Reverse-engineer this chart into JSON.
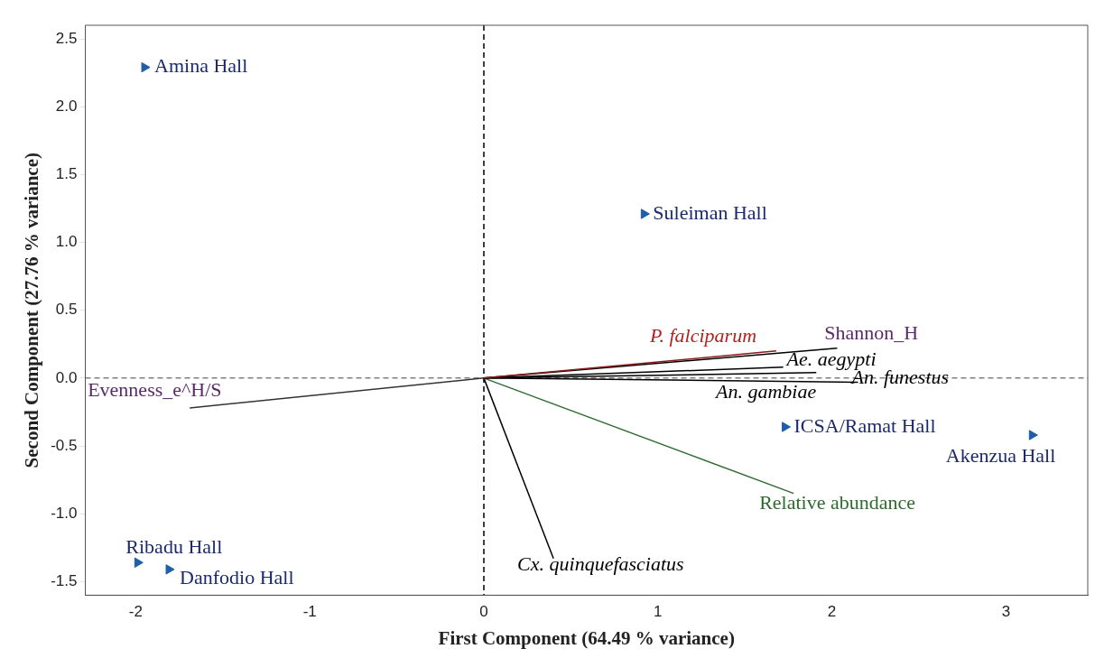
{
  "chart_data": {
    "type": "scatter",
    "xlabel": "First Component (64.49 % variance)",
    "ylabel": "Second Component (27.76 % variance)",
    "xlim": [
      -2.29,
      3.47
    ],
    "ylim": [
      -1.6,
      2.6
    ],
    "xticks": [
      -2,
      -1,
      0,
      1,
      2,
      3
    ],
    "yticks": [
      {
        "value": -1.5,
        "label": "-1.5"
      },
      {
        "value": -1,
        "label": "-1.0"
      },
      {
        "value": -0.5,
        "label": "-0.5"
      },
      {
        "value": 0,
        "label": "0.0"
      },
      {
        "value": 0.5,
        "label": "0.5"
      },
      {
        "value": 1,
        "label": "1.0"
      },
      {
        "value": 1.5,
        "label": "1.5"
      },
      {
        "value": 2,
        "label": "2.0"
      },
      {
        "value": 2.5,
        "label": "2.5"
      }
    ],
    "grid": false,
    "legend": false,
    "ref_lines": [
      {
        "axis": "x",
        "value": 0,
        "color": "#000000",
        "line_style": "dashed"
      },
      {
        "axis": "y",
        "value": 0,
        "color": "#808080",
        "line_style": "dashed"
      }
    ],
    "series": [
      {
        "name": "Amina Hall",
        "marker": "triangle",
        "color": "#1f5fa8",
        "x": [
          -1.95
        ],
        "values": [
          2.29
        ]
      },
      {
        "name": "Suleiman Hall",
        "marker": "triangle",
        "color": "#1f5fa8",
        "x": [
          0.92
        ],
        "values": [
          1.21
        ]
      },
      {
        "name": "ICSA/Ramat Hall",
        "marker": "triangle",
        "color": "#1f5fa8",
        "x": [
          1.73
        ],
        "values": [
          -0.36
        ]
      },
      {
        "name": "Akenzua Hall",
        "marker": "triangle",
        "color": "#1f5fa8",
        "x": [
          3.15
        ],
        "values": [
          -0.42
        ]
      },
      {
        "name": "Ribadu Hall",
        "marker": "triangle",
        "color": "#1f5fa8",
        "x": [
          -1.99
        ],
        "values": [
          -1.36
        ]
      },
      {
        "name": "Danfodio Hall",
        "marker": "triangle",
        "color": "#1f5fa8",
        "x": [
          -1.81
        ],
        "values": [
          -1.41
        ]
      },
      {
        "name": "P. falciparum",
        "type": "line",
        "color": "#8b1a1a",
        "x": [
          0,
          1.68
        ],
        "values": [
          0,
          0.2
        ]
      },
      {
        "name": "Shannon_H",
        "type": "line",
        "color": "#000000",
        "x": [
          0,
          2.03
        ],
        "values": [
          0,
          0.22
        ]
      },
      {
        "name": "Ae. aegypti",
        "type": "line",
        "color": "#000000",
        "x": [
          0,
          1.72
        ],
        "values": [
          0,
          0.08
        ]
      },
      {
        "name": "An. funestus",
        "type": "line",
        "color": "#000000",
        "x": [
          0,
          2.15
        ],
        "values": [
          0,
          -0.03
        ]
      },
      {
        "name": "An. gambiae",
        "type": "line",
        "color": "#000000",
        "x": [
          0,
          1.91
        ],
        "values": [
          0,
          0.04
        ]
      },
      {
        "name": "Relative abundance",
        "type": "line",
        "color": "#2e6b2e",
        "x": [
          0,
          1.78
        ],
        "values": [
          0,
          -0.85
        ]
      },
      {
        "name": "Cx. quinquefasciatus",
        "type": "line",
        "color": "#000000",
        "x": [
          0,
          0.4
        ],
        "values": [
          0,
          -1.33
        ]
      },
      {
        "name": "Evenness_e^H/S",
        "type": "line",
        "color": "#333333",
        "x": [
          0,
          -1.69
        ],
        "values": [
          0,
          -0.22
        ]
      }
    ]
  }
}
